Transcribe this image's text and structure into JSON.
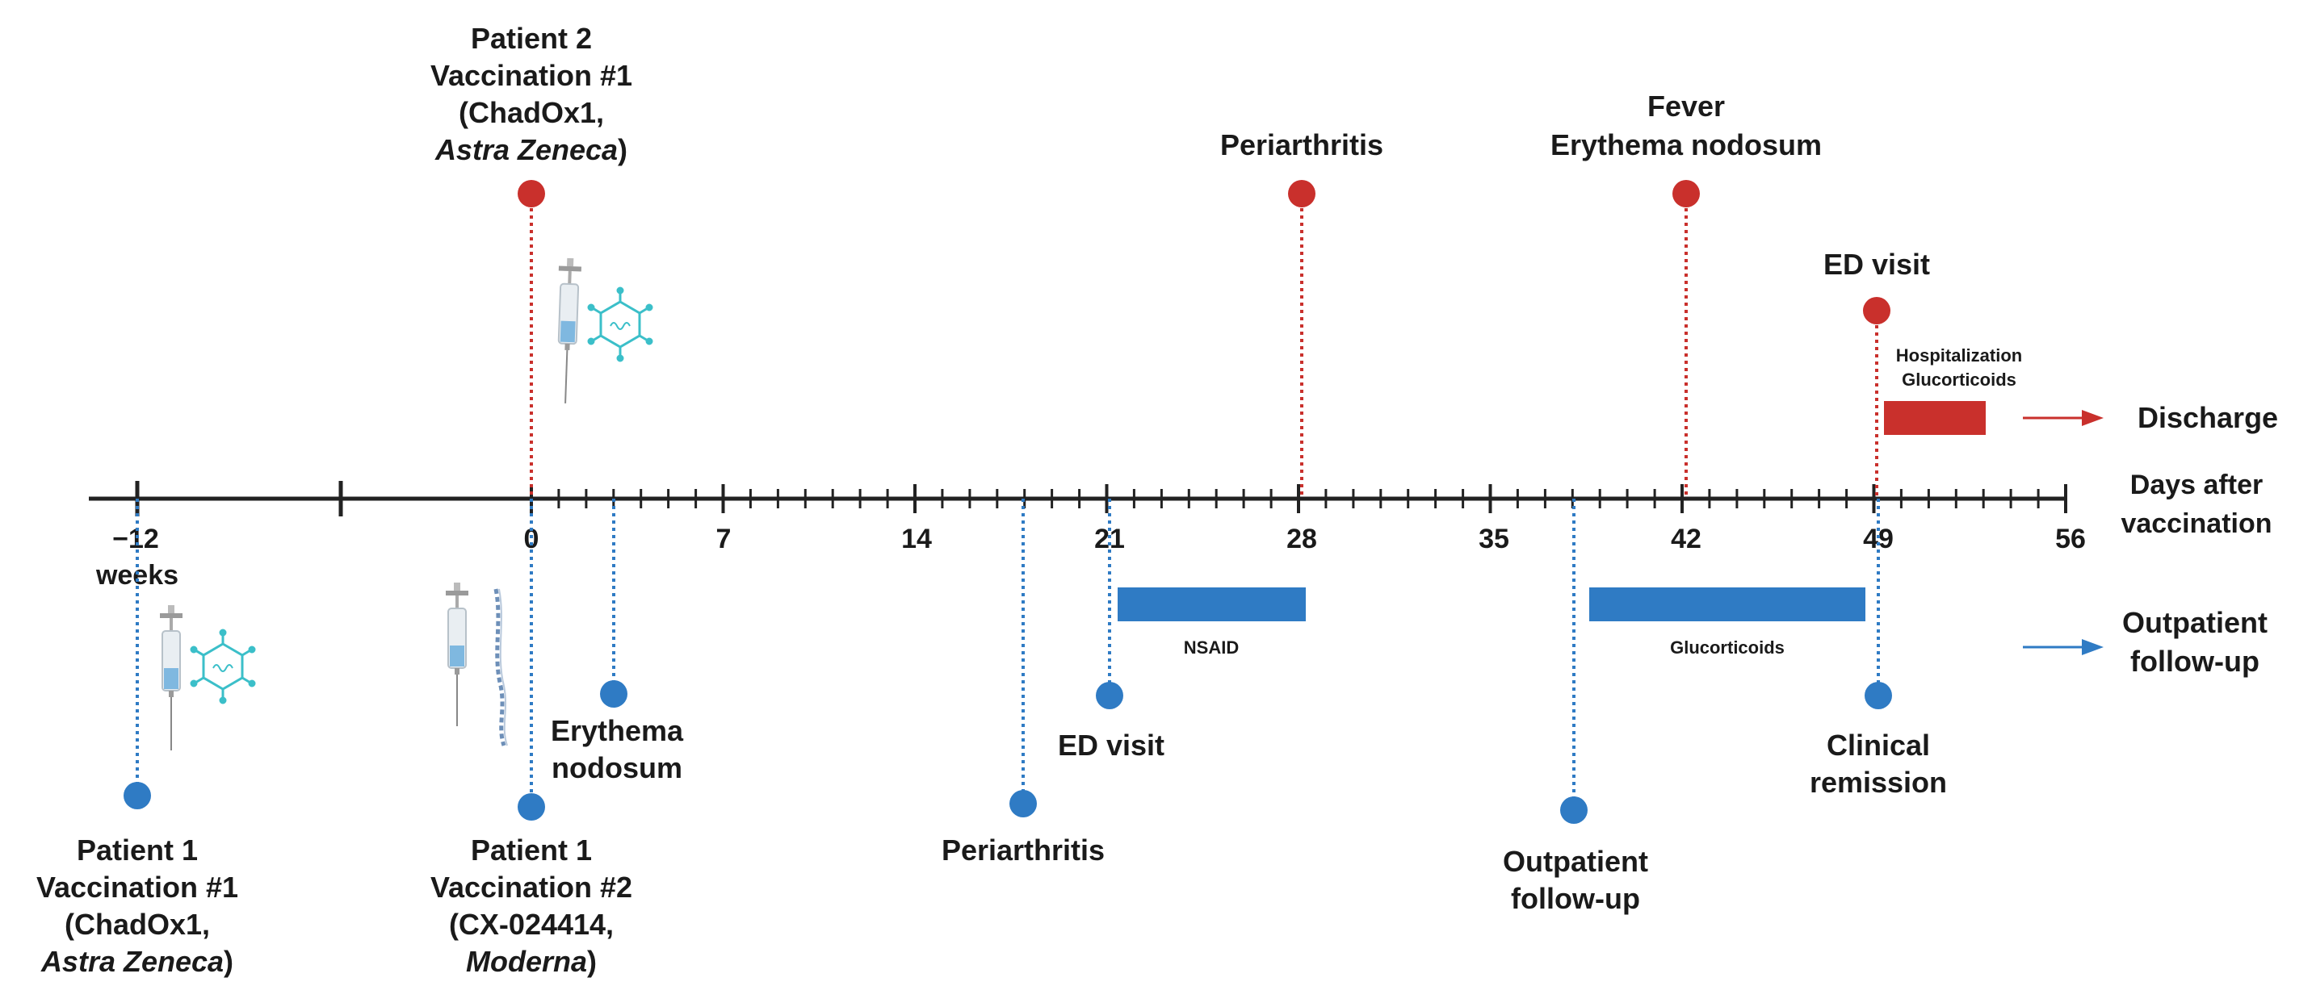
{
  "colors": {
    "patient2": "#c9302c",
    "patient1": "#2f7bc4",
    "axis": "#222222",
    "text": "#1a1a1a",
    "icon": "#3bbfc9"
  },
  "axis": {
    "tick_labels": [
      "−12",
      "0",
      "7",
      "14",
      "21",
      "28",
      "35",
      "42",
      "49",
      "56"
    ],
    "weeks_label": "weeks",
    "days_label": [
      "Days after",
      "vaccination"
    ]
  },
  "patient2": {
    "vaccination": {
      "lines": [
        "Patient 2",
        "Vaccination #1",
        "(ChadOx1,"
      ],
      "line4_italic": "Astra Zeneca",
      "line4_close": ")"
    },
    "periarthritis": "Periarthritis",
    "fever": [
      "Fever",
      "Erythema nodosum"
    ],
    "ed_visit": "ED visit",
    "bar_label": [
      "Hospitalization",
      "Glucorticoids"
    ],
    "discharge": "Discharge"
  },
  "patient1": {
    "vaccination1": {
      "lines": [
        "Patient 1",
        "Vaccination #1",
        "(ChadOx1,"
      ],
      "line4_italic": "Astra Zeneca",
      "line4_close": ")"
    },
    "vaccination2": {
      "lines": [
        "Patient 1",
        "Vaccination #2",
        "(CX-024414,"
      ],
      "line4_italic": "Moderna",
      "line4_close": ")"
    },
    "erythema": [
      "Erythema",
      "nodosum"
    ],
    "periarthritis": "Periarthritis",
    "ed_visit": "ED visit",
    "outpatient": [
      "Outpatient",
      "follow-up"
    ],
    "remission": [
      "Clinical",
      "remission"
    ],
    "nsaid": "NSAID",
    "glucorticoids": "Glucorticoids",
    "followup": [
      "Outpatient",
      "follow-up"
    ]
  },
  "icons": [
    "syringe-icon",
    "virus-icon",
    "mrna-strand-icon"
  ]
}
